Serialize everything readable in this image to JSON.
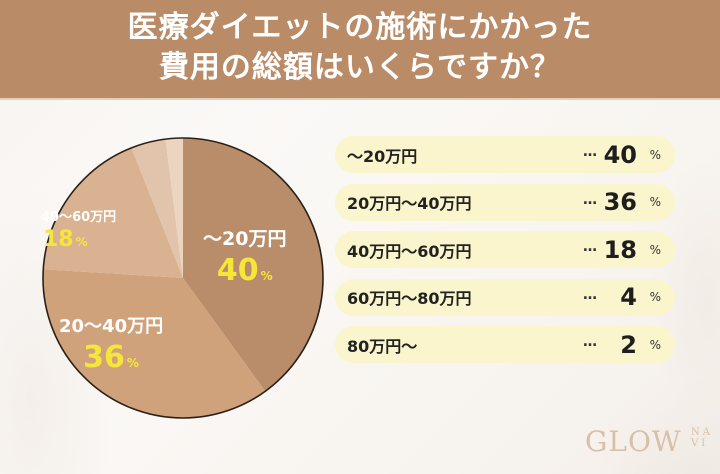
{
  "header": {
    "title_line1": "医療ダイエットの施術にかかった",
    "title_line2": "費用の総額はいくらですか？"
  },
  "colors": {
    "header_bg": "#b98b67",
    "slice_colors": [
      "#b98d69",
      "#cfa27c",
      "#d9b291",
      "#e1c4ab",
      "#ecd5bf"
    ],
    "pill_bg": "#faf5cc",
    "pct_highlight": "#f7e63a"
  },
  "pie_labels": [
    {
      "category": "〜20万円",
      "value": "40",
      "unit": "%"
    },
    {
      "category": "20〜40万円",
      "value": "36",
      "unit": "%"
    },
    {
      "category": "40〜60万円",
      "value": "18",
      "unit": "%"
    }
  ],
  "list": [
    {
      "label": "〜20万円",
      "dots": "…",
      "value": "40",
      "unit": "%"
    },
    {
      "label": "20万円〜40万円",
      "dots": "…",
      "value": "36",
      "unit": "%"
    },
    {
      "label": "40万円〜60万円",
      "dots": "…",
      "value": "18",
      "unit": "%"
    },
    {
      "label": "60万円〜80万円",
      "dots": "…",
      "value": "4",
      "unit": "%"
    },
    {
      "label": "80万円〜",
      "dots": "…",
      "value": "2",
      "unit": "%"
    }
  ],
  "logo": {
    "main": "GLOW",
    "sub1": "NA",
    "sub2": "VI"
  },
  "chart_data": {
    "type": "pie",
    "title": "医療ダイエットの施術にかかった費用の総額はいくらですか？",
    "categories": [
      "〜20万円",
      "20万円〜40万円",
      "40万円〜60万円",
      "60万円〜80万円",
      "80万円〜"
    ],
    "values": [
      40,
      36,
      18,
      4,
      2
    ],
    "unit": "%",
    "start_angle": "12 o'clock, clockwise",
    "legend_position": "right"
  }
}
